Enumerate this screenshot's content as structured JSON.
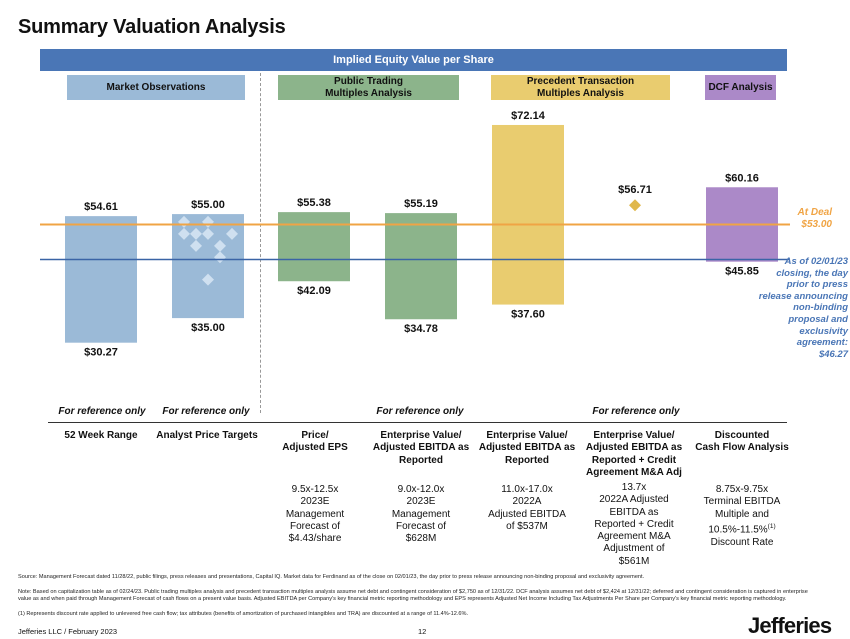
{
  "title": "Summary Valuation Analysis",
  "banner": "Implied Equity Value per Share",
  "headers": {
    "market": "Market Observations",
    "public": "Public Trading\nMultiples Analysis",
    "precedent": "Precedent Transaction\nMultiples Analysis",
    "dcf": "DCF Analysis"
  },
  "colors": {
    "market": "#9bbad7",
    "public": "#8cb48b",
    "precedent": "#e9cc6f",
    "dcf": "#ab89c8",
    "deal_line": "#f0a444",
    "current_line": "#3a64a6",
    "diamond_market": "#cfe0f0",
    "diamond_prec": "#e0b84c"
  },
  "chart_data": {
    "type": "bar",
    "ylim": [
      18,
      80
    ],
    "series": [
      {
        "name": "52 Week Range",
        "low": 30.27,
        "high": 54.61,
        "low_label": "$30.27",
        "high_label": "$54.61",
        "group": "market"
      },
      {
        "name": "Analyst Price Targets",
        "low": 35.0,
        "high": 55.0,
        "low_label": "$35.00",
        "high_label": "$55.00",
        "group": "market",
        "diamonds": [
          53.5,
          53.5,
          51.2,
          51.2,
          51.2,
          51.2,
          48.9,
          48.9,
          46.7,
          42.4
        ]
      },
      {
        "name": "Price / Adjusted EPS",
        "low": 42.09,
        "high": 55.38,
        "low_label": "$42.09",
        "high_label": "$55.38",
        "group": "public"
      },
      {
        "name": "EV / Adjusted EBITDA as Reported (Public)",
        "low": 34.78,
        "high": 55.19,
        "low_label": "$34.78",
        "high_label": "$55.19",
        "group": "public"
      },
      {
        "name": "EV / Adjusted EBITDA as Reported (Precedent)",
        "low": 37.6,
        "high": 72.14,
        "low_label": "$37.60",
        "high_label": "$72.14",
        "group": "precedent"
      },
      {
        "name": "EV / Adjusted EBITDA as Reported + Credit Agreement M&A Adj",
        "point": 56.71,
        "point_label": "$56.71",
        "group": "precedent"
      },
      {
        "name": "Discounted Cash Flow Analysis",
        "low": 45.85,
        "high": 60.16,
        "low_label": "$45.85",
        "high_label": "$60.16",
        "group": "dcf"
      }
    ],
    "reference_lines": [
      {
        "name": "At Deal",
        "value": 53.0
      },
      {
        "name": "As of 02/01/23",
        "value": 46.27
      }
    ]
  },
  "annotations": {
    "deal_label": "At Deal\n$53.00",
    "asof_label": "As of 02/01/23 closing, the day prior to press release announcing non-binding proposal and exclusivity agreement:\n$46.27"
  },
  "reference_only": "For reference only",
  "columns": [
    {
      "label": "52 Week Range",
      "desc": ""
    },
    {
      "label": "Analyst Price Targets",
      "desc": ""
    },
    {
      "label": "Price/\nAdjusted EPS",
      "desc": "9.5x-12.5x\n2023E\nManagement\nForecast of\n$4.43/share"
    },
    {
      "label": "Enterprise Value/\nAdjusted EBITDA as\nReported",
      "desc": "9.0x-12.0x\n2023E\nManagement\nForecast of\n$628M"
    },
    {
      "label": "Enterprise Value/\nAdjusted EBITDA as\nReported",
      "desc": "11.0x-17.0x\n2022A\nAdjusted EBITDA\nof $537M"
    },
    {
      "label": "Enterprise Value/\nAdjusted EBITDA as\nReported + Credit\nAgreement M&A Adj",
      "desc": "13.7x\n2022A Adjusted\nEBITDA as\nReported + Credit\nAgreement M&A\nAdjustment of\n$561M"
    },
    {
      "label": "Discounted\nCash Flow Analysis",
      "desc_pre": "8.75x-9.75x\nTerminal EBITDA\nMultiple and\n10.5%-11.5%",
      "desc_sup": "(1)",
      "desc_post": "Discount Rate"
    }
  ],
  "footnotes": {
    "source": "Source: Management Forecast dated 11/28/22, public filings, press releases and presentations, Capital IQ. Market data for Ferdinand as of the close on 02/01/23, the day prior to press release announcing non-binding proposal and exclusivity agreement.",
    "note": "Note: Based on capitalization table as of 02/24/23. Public trading multiples analysis and precedent transaction multiples analysis assume net debt and contingent consideration of $2,750 as of 12/31/22. DCF analysis assumes net debt of $2,424 at 12/31/22; deferred and contingent consideration is captured in enterprise value as and when paid through Management Forecast of cash flows on a present value basis. Adjusted EBITDA per Company's key financial metric reporting methodology and EPS represents Adjusted Net Income Including Tax Adjustments Per Share per Company's key financial metric reporting methodology.",
    "one": "(1)      Represents discount rate applied to unlevered free cash flow; tax attributes (benefits of amortization of purchased intangibles and TRA) are discounted at a range of 11.4%-12.6%."
  },
  "footer": {
    "left": "Jefferies LLC  /  February 2023",
    "page": "12",
    "logo": "Jefferies"
  }
}
